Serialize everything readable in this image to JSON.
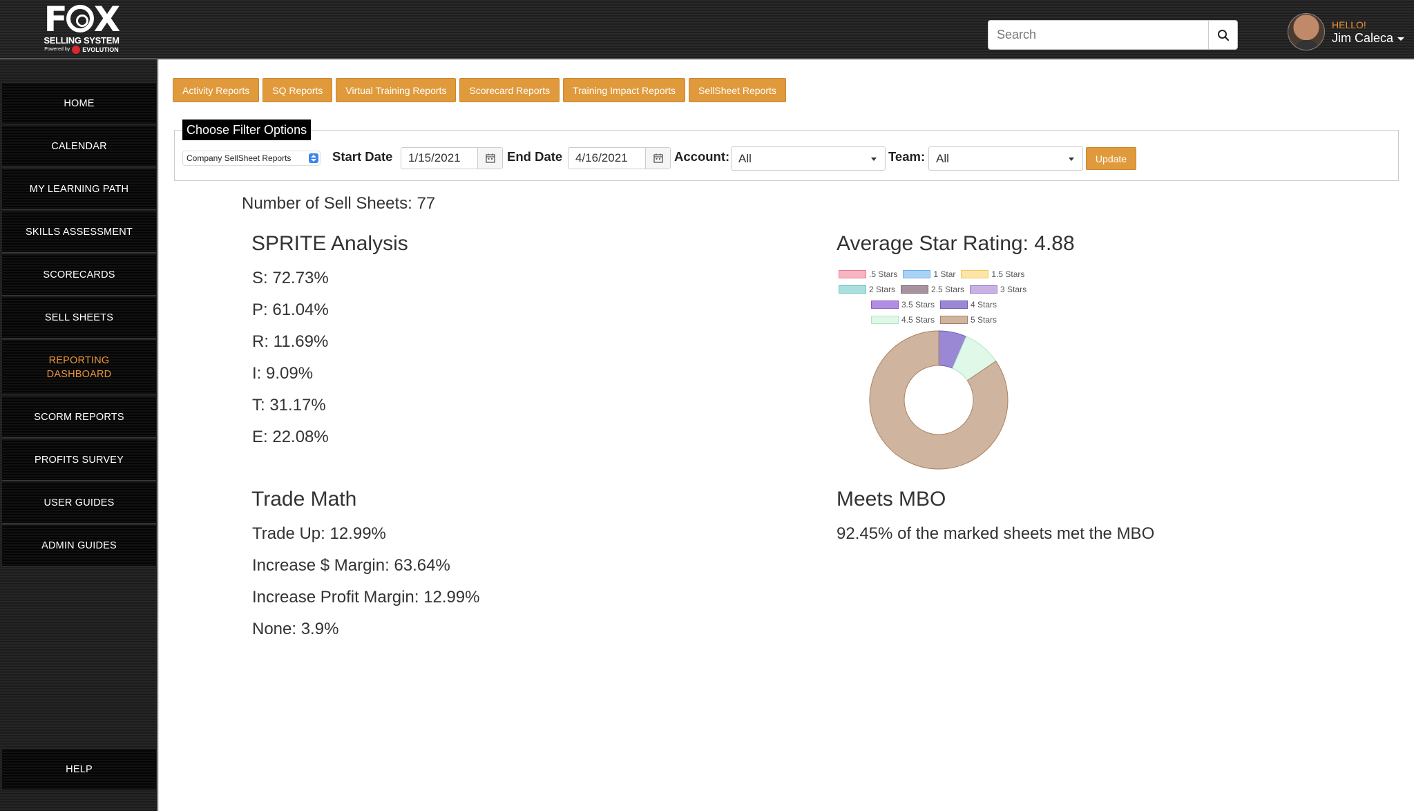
{
  "header": {
    "logo_main": "F",
    "logo_main_rest": "X",
    "logo_sub": "SELLING SYSTEM",
    "logo_powered": "Powered by",
    "logo_evolution": "EVOLUTION",
    "search_placeholder": "Search",
    "hello": "HELLO!",
    "user_name": "Jim Caleca"
  },
  "sidebar": {
    "items": [
      {
        "label": "HOME"
      },
      {
        "label": "CALENDAR"
      },
      {
        "label": "MY LEARNING PATH"
      },
      {
        "label": "SKILLS ASSESSMENT"
      },
      {
        "label": "SCORECARDS"
      },
      {
        "label": "SELL SHEETS"
      },
      {
        "label": "REPORTING DASHBOARD"
      },
      {
        "label": "SCORM REPORTS"
      },
      {
        "label": "PROFITS SURVEY"
      },
      {
        "label": "USER GUIDES"
      },
      {
        "label": "ADMIN GUIDES"
      },
      {
        "label": "HELP"
      }
    ],
    "active": "REPORTING DASHBOARD"
  },
  "tabs": [
    {
      "label": "Activity Reports"
    },
    {
      "label": "SQ Reports"
    },
    {
      "label": "Virtual Training Reports"
    },
    {
      "label": "Scorecard Reports"
    },
    {
      "label": "Training Impact Reports"
    },
    {
      "label": "SellSheet Reports"
    }
  ],
  "filter": {
    "title": "Choose Filter Options",
    "report_type": "Company SellSheet Reports",
    "start_label": "Start Date",
    "start_value": "1/15/2021",
    "end_label": "End Date",
    "end_value": "4/16/2021",
    "account_label": "Account:",
    "account_value": "All",
    "team_label": "Team:",
    "team_value": "All",
    "update_label": "Update"
  },
  "summary": {
    "num_sheets": "Number of Sell Sheets: 77"
  },
  "sprite": {
    "title": "SPRITE Analysis",
    "items": [
      "S: 72.73%",
      "P: 61.04%",
      "R: 11.69%",
      "I: 9.09%",
      "T: 31.17%",
      "E: 22.08%"
    ]
  },
  "trade_math": {
    "title": "Trade Math",
    "items": [
      "Trade Up: 12.99%",
      "Increase $ Margin: 63.64%",
      "Increase Profit Margin: 12.99%",
      "None: 3.9%"
    ]
  },
  "mbo": {
    "title": "Meets MBO",
    "text": "92.45% of the marked sheets met the MBO"
  },
  "star_rating": {
    "title": "Average Star Rating: 4.88"
  },
  "chart_data": {
    "type": "pie",
    "variant": "doughnut",
    "categories": [
      ".5 Stars",
      "1 Star",
      "1.5 Stars",
      "2 Stars",
      "2.5 Stars",
      "3 Stars",
      "3.5 Stars",
      "4 Stars",
      "4.5 Stars",
      "5 Stars"
    ],
    "values": [
      0,
      0,
      0,
      0,
      0,
      0,
      0,
      6.5,
      9,
      84.5
    ],
    "colors": [
      "#f7b5c2",
      "#a9d2f5",
      "#fde4a8",
      "#a9e0df",
      "#a7939f",
      "#c8b2e4",
      "#b28ee2",
      "#9b88d4",
      "#dff8e8",
      "#cfb5a0"
    ],
    "borders": [
      "#e47c93",
      "#6eaee8",
      "#f0c65a",
      "#6cc4c2",
      "#7a6777",
      "#9c7ed0",
      "#8a5fd0",
      "#6f5cb8",
      "#b0e6c4",
      "#a88060"
    ],
    "legend_position": "top"
  }
}
